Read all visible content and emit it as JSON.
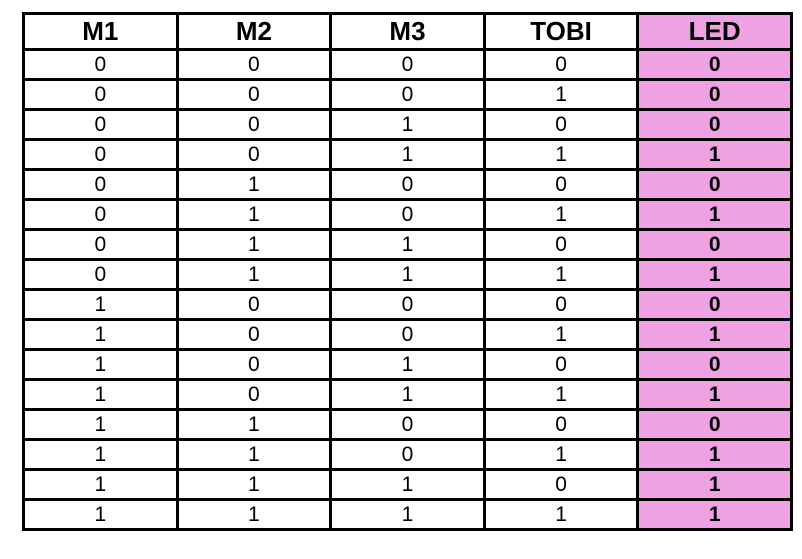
{
  "table": {
    "headers": [
      "M1",
      "M2",
      "M3",
      "TOBI",
      "LED"
    ],
    "rows": [
      [
        "0",
        "0",
        "0",
        "0",
        "0"
      ],
      [
        "0",
        "0",
        "0",
        "1",
        "0"
      ],
      [
        "0",
        "0",
        "1",
        "0",
        "0"
      ],
      [
        "0",
        "0",
        "1",
        "1",
        "1"
      ],
      [
        "0",
        "1",
        "0",
        "0",
        "0"
      ],
      [
        "0",
        "1",
        "0",
        "1",
        "1"
      ],
      [
        "0",
        "1",
        "1",
        "0",
        "0"
      ],
      [
        "0",
        "1",
        "1",
        "1",
        "1"
      ],
      [
        "1",
        "0",
        "0",
        "0",
        "0"
      ],
      [
        "1",
        "0",
        "0",
        "1",
        "1"
      ],
      [
        "1",
        "0",
        "1",
        "0",
        "0"
      ],
      [
        "1",
        "0",
        "1",
        "1",
        "1"
      ],
      [
        "1",
        "1",
        "0",
        "0",
        "0"
      ],
      [
        "1",
        "1",
        "0",
        "1",
        "1"
      ],
      [
        "1",
        "1",
        "1",
        "0",
        "1"
      ],
      [
        "1",
        "1",
        "1",
        "1",
        "1"
      ]
    ]
  },
  "colors": {
    "led_column": "#eea2e3",
    "border": "#000000"
  }
}
